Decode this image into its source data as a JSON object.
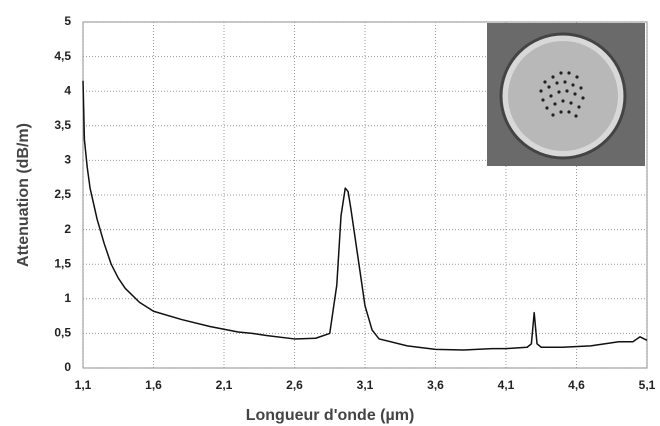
{
  "chart_data": {
    "type": "line",
    "x_label": "Longueur d'onde (µm)",
    "y_label": "Attenuation (dB/m)",
    "x": [
      1.1,
      1.11,
      1.13,
      1.15,
      1.2,
      1.25,
      1.3,
      1.35,
      1.4,
      1.5,
      1.6,
      1.8,
      2.0,
      2.2,
      2.3,
      2.4,
      2.6,
      2.75,
      2.85,
      2.9,
      2.93,
      2.96,
      2.98,
      3.0,
      3.05,
      3.1,
      3.15,
      3.2,
      3.4,
      3.6,
      3.8,
      4.0,
      4.1,
      4.25,
      4.28,
      4.3,
      4.32,
      4.35,
      4.5,
      4.7,
      4.9,
      5.0,
      5.05,
      5.1
    ],
    "values": [
      4.15,
      3.3,
      2.9,
      2.6,
      2.15,
      1.8,
      1.5,
      1.3,
      1.15,
      0.95,
      0.82,
      0.7,
      0.6,
      0.52,
      0.5,
      0.47,
      0.42,
      0.43,
      0.5,
      1.2,
      2.2,
      2.6,
      2.55,
      2.3,
      1.6,
      0.9,
      0.55,
      0.42,
      0.32,
      0.27,
      0.26,
      0.28,
      0.28,
      0.3,
      0.35,
      0.8,
      0.35,
      0.3,
      0.3,
      0.32,
      0.38,
      0.38,
      0.45,
      0.4
    ],
    "color": "#111111",
    "xlim": [
      1.1,
      5.1
    ],
    "xticks": [
      {
        "value": 1.1,
        "label": "1,1"
      },
      {
        "value": 1.6,
        "label": "1,6"
      },
      {
        "value": 2.1,
        "label": "2,1"
      },
      {
        "value": 2.6,
        "label": "2,6"
      },
      {
        "value": 3.1,
        "label": "3,1"
      },
      {
        "value": 3.6,
        "label": "3,6"
      },
      {
        "value": 4.1,
        "label": "4,1"
      },
      {
        "value": 4.6,
        "label": "4,6"
      },
      {
        "value": 5.1,
        "label": "5,1"
      }
    ],
    "ylim": [
      0,
      5
    ],
    "yticks": [
      0,
      {
        "value": 0.5,
        "label": "0,5"
      },
      1,
      {
        "value": 1.5,
        "label": "1,5"
      },
      2,
      {
        "value": 2.5,
        "label": "2,5"
      },
      3,
      {
        "value": 3.5,
        "label": "3,5"
      },
      4,
      {
        "value": 4.5,
        "label": "4,5"
      },
      5
    ],
    "grid": true
  }
}
